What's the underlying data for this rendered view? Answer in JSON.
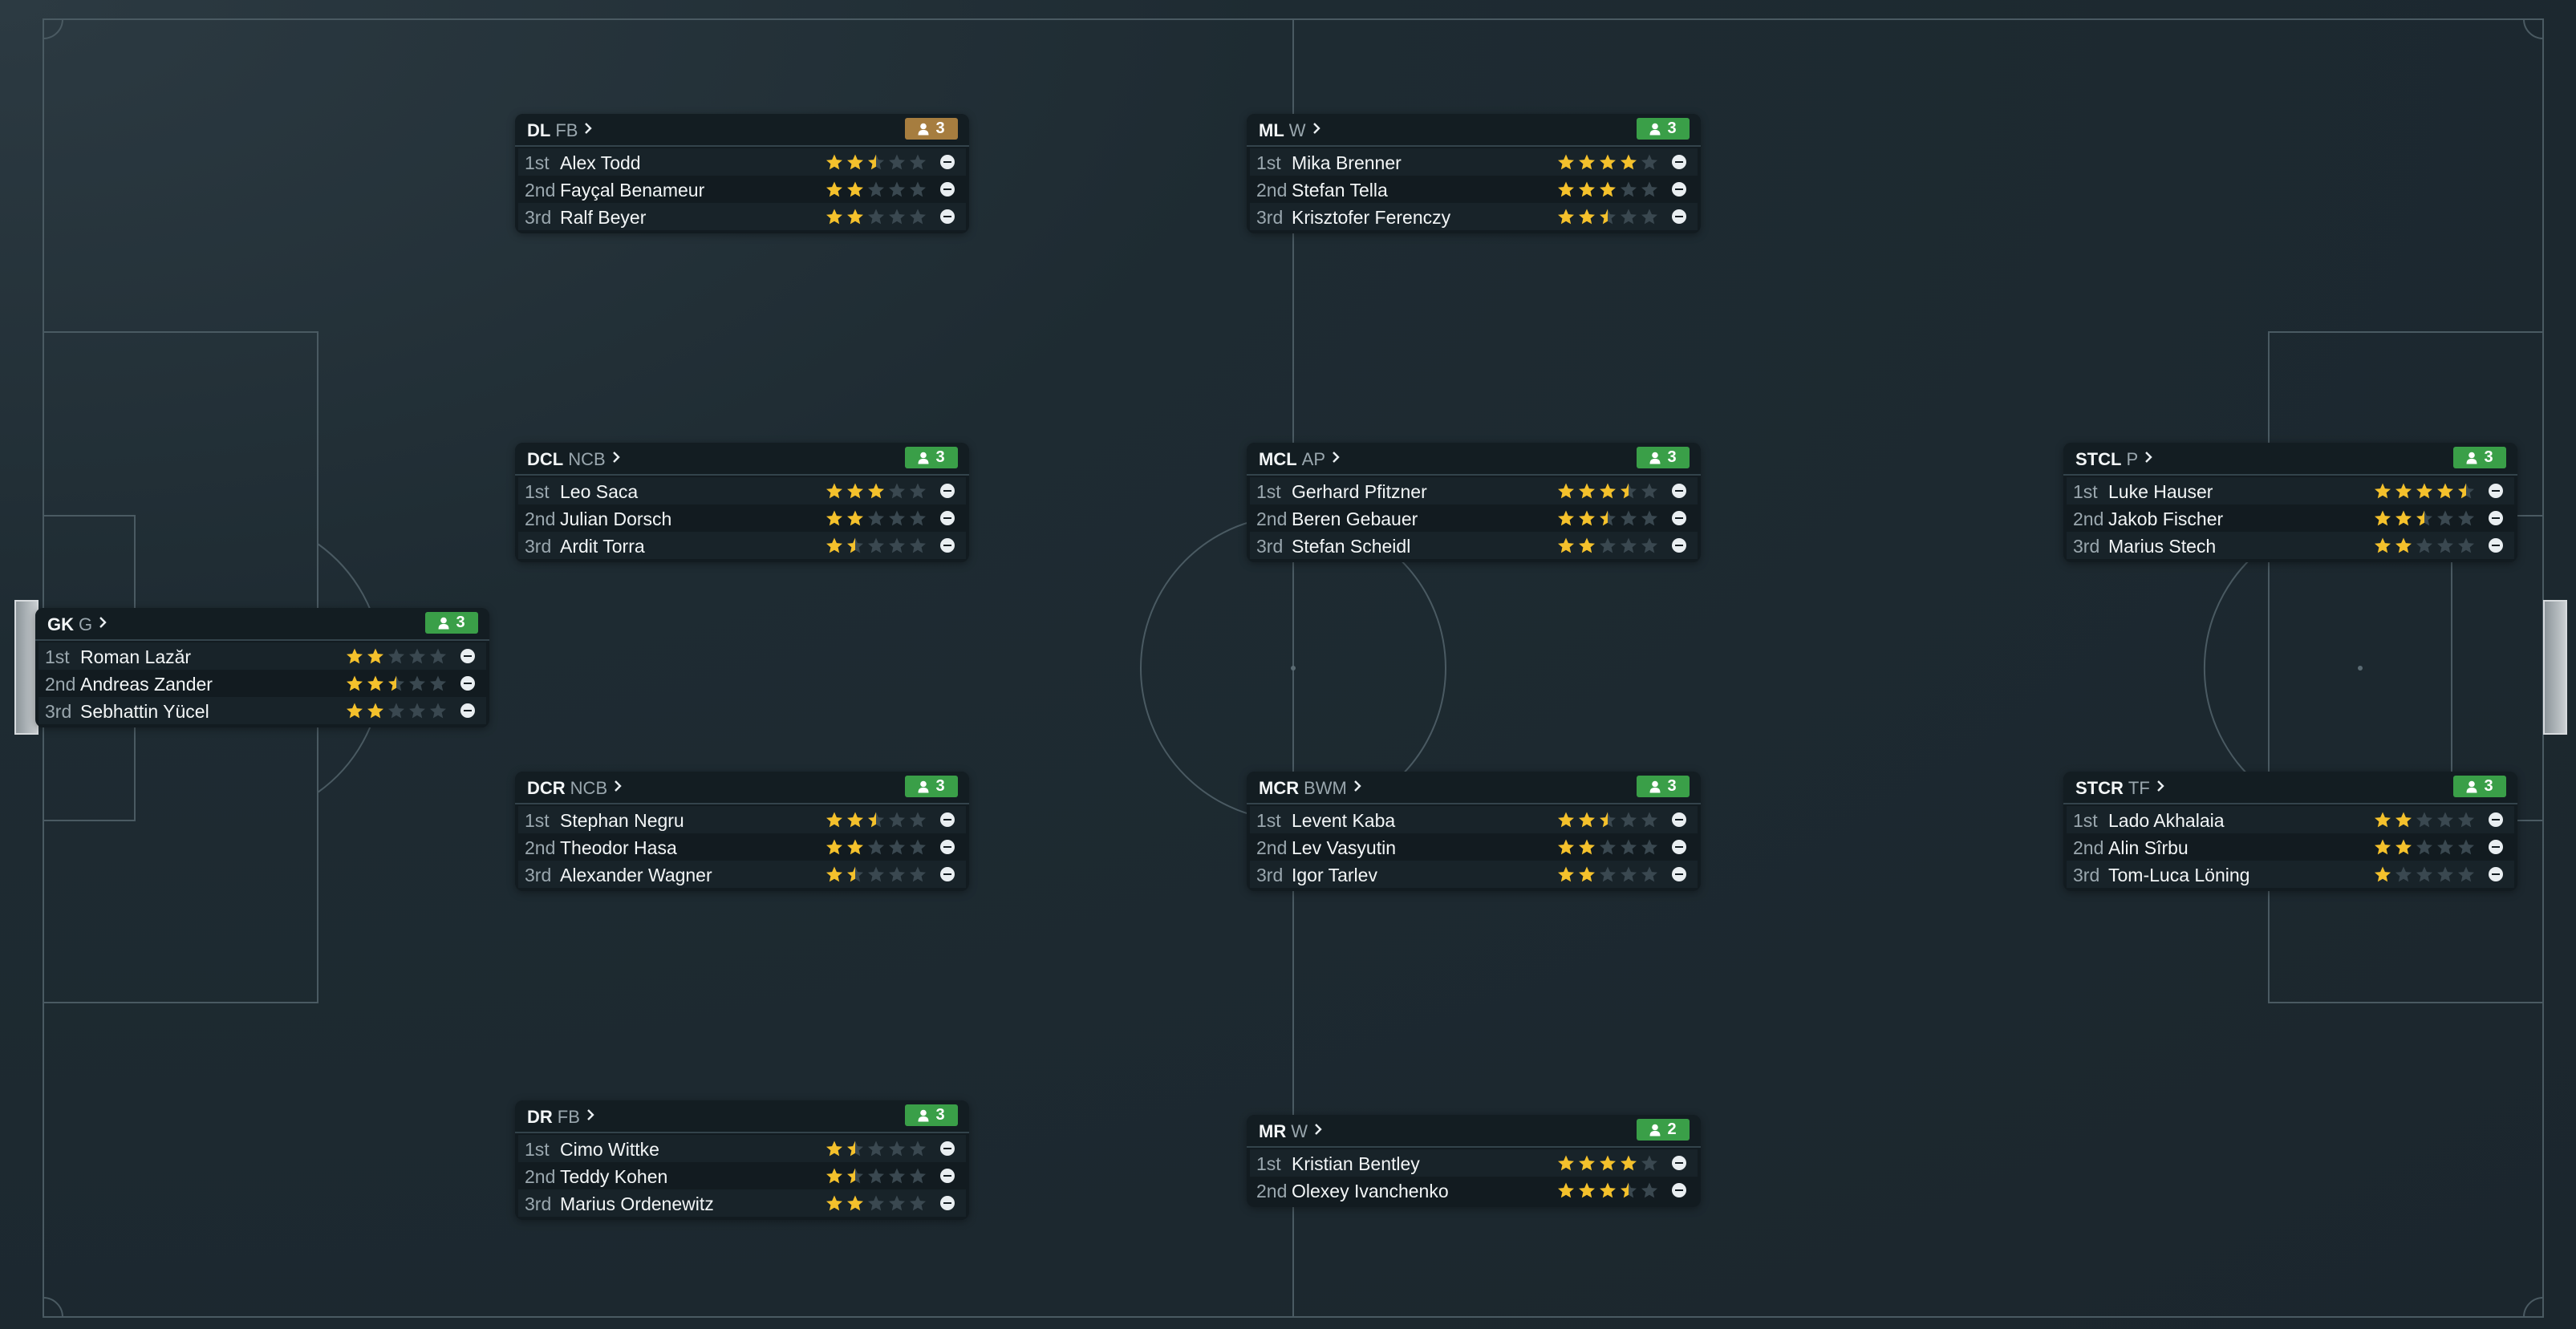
{
  "colors": {
    "badge_green": "#3a9f48",
    "badge_amber": "#a67d3f",
    "star_full": "#f4c12c",
    "star_empty": "#3a4850"
  },
  "icons": {
    "badge": "person-icon",
    "header": "chevron-right-icon",
    "row": "remove-icon"
  },
  "positions": [
    {
      "code": "GK",
      "role": "G",
      "count": "3",
      "badge_color": "green",
      "players": [
        {
          "rank": "1st",
          "name": "Roman Lazăr",
          "stars": 2
        },
        {
          "rank": "2nd",
          "name": "Andreas Zander",
          "stars": 2.5
        },
        {
          "rank": "3rd",
          "name": "Sebhattin Yücel",
          "stars": 2
        }
      ]
    },
    {
      "code": "DL",
      "role": "FB",
      "count": "3",
      "badge_color": "amber",
      "players": [
        {
          "rank": "1st",
          "name": "Alex Todd",
          "stars": 2.5
        },
        {
          "rank": "2nd",
          "name": "Fayçal Benameur",
          "stars": 2
        },
        {
          "rank": "3rd",
          "name": "Ralf Beyer",
          "stars": 2
        }
      ]
    },
    {
      "code": "DCL",
      "role": "NCB",
      "count": "3",
      "badge_color": "green",
      "players": [
        {
          "rank": "1st",
          "name": "Leo Saca",
          "stars": 3
        },
        {
          "rank": "2nd",
          "name": "Julian Dorsch",
          "stars": 2
        },
        {
          "rank": "3rd",
          "name": "Ardit Torra",
          "stars": 1.5
        }
      ]
    },
    {
      "code": "DCR",
      "role": "NCB",
      "count": "3",
      "badge_color": "green",
      "players": [
        {
          "rank": "1st",
          "name": "Stephan Negru",
          "stars": 2.5
        },
        {
          "rank": "2nd",
          "name": "Theodor Hasa",
          "stars": 2
        },
        {
          "rank": "3rd",
          "name": "Alexander Wagner",
          "stars": 1.5
        }
      ]
    },
    {
      "code": "DR",
      "role": "FB",
      "count": "3",
      "badge_color": "green",
      "players": [
        {
          "rank": "1st",
          "name": "Cimo Wittke",
          "stars": 1.5
        },
        {
          "rank": "2nd",
          "name": "Teddy Kohen",
          "stars": 1.5
        },
        {
          "rank": "3rd",
          "name": "Marius Ordenewitz",
          "stars": 2
        }
      ]
    },
    {
      "code": "ML",
      "role": "W",
      "count": "3",
      "badge_color": "green",
      "players": [
        {
          "rank": "1st",
          "name": "Mika Brenner",
          "stars": 4
        },
        {
          "rank": "2nd",
          "name": "Stefan Tella",
          "stars": 3
        },
        {
          "rank": "3rd",
          "name": "Krisztofer Ferenczy",
          "stars": 2.5
        }
      ]
    },
    {
      "code": "MCL",
      "role": "AP",
      "count": "3",
      "badge_color": "green",
      "players": [
        {
          "rank": "1st",
          "name": "Gerhard Pfitzner",
          "stars": 3.5
        },
        {
          "rank": "2nd",
          "name": "Beren Gebauer",
          "stars": 2.5
        },
        {
          "rank": "3rd",
          "name": "Stefan Scheidl",
          "stars": 2
        }
      ]
    },
    {
      "code": "MCR",
      "role": "BWM",
      "count": "3",
      "badge_color": "green",
      "players": [
        {
          "rank": "1st",
          "name": "Levent Kaba",
          "stars": 2.5
        },
        {
          "rank": "2nd",
          "name": "Lev Vasyutin",
          "stars": 2
        },
        {
          "rank": "3rd",
          "name": "Igor Tarlev",
          "stars": 2
        }
      ]
    },
    {
      "code": "MR",
      "role": "W",
      "count": "2",
      "badge_color": "green",
      "players": [
        {
          "rank": "1st",
          "name": "Kristian Bentley",
          "stars": 4
        },
        {
          "rank": "2nd",
          "name": "Olexey Ivanchenko",
          "stars": 3.5
        }
      ]
    },
    {
      "code": "STCL",
      "role": "P",
      "count": "3",
      "badge_color": "green",
      "players": [
        {
          "rank": "1st",
          "name": "Luke Hauser",
          "stars": 4.5
        },
        {
          "rank": "2nd",
          "name": "Jakob Fischer",
          "stars": 2.5
        },
        {
          "rank": "3rd",
          "name": "Marius Stech",
          "stars": 2
        }
      ]
    },
    {
      "code": "STCR",
      "role": "TF",
      "count": "3",
      "badge_color": "green",
      "players": [
        {
          "rank": "1st",
          "name": "Lado Akhalaia",
          "stars": 2
        },
        {
          "rank": "2nd",
          "name": "Alin Sîrbu",
          "stars": 2
        },
        {
          "rank": "3rd",
          "name": "Tom-Luca Löning",
          "stars": 1
        }
      ]
    }
  ]
}
